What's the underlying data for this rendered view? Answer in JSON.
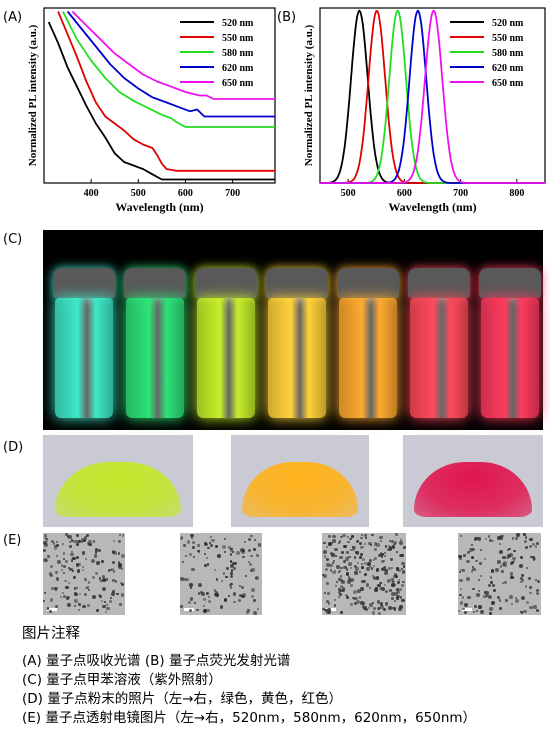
{
  "panels": {
    "a": "(A)",
    "b": "(B)",
    "c": "(C)",
    "d": "(D)",
    "e": "(E)"
  },
  "chart_data": [
    {
      "type": "line",
      "title": "",
      "xlabel": "Wavelength (nm)",
      "ylabel": "Normalized PL intensity (a.u.)",
      "xlim": [
        300,
        790
      ],
      "xticks": [
        400,
        500,
        600,
        700
      ],
      "legend_position": "top-right",
      "series": [
        {
          "name": "520 nm",
          "color": "#000000",
          "x": [
            310,
            330,
            350,
            370,
            390,
            410,
            430,
            450,
            470,
            490,
            500,
            510,
            530,
            550,
            600,
            700,
            790
          ],
          "y": [
            0.92,
            0.8,
            0.66,
            0.55,
            0.44,
            0.34,
            0.26,
            0.17,
            0.12,
            0.1,
            0.09,
            0.08,
            0.05,
            0.02,
            0.02,
            0.02,
            0.02
          ]
        },
        {
          "name": "550 nm",
          "color": "#e00000",
          "x": [
            330,
            350,
            370,
            390,
            410,
            430,
            450,
            470,
            490,
            510,
            530,
            540,
            550,
            560,
            580,
            700,
            790
          ],
          "y": [
            0.98,
            0.85,
            0.72,
            0.58,
            0.46,
            0.38,
            0.34,
            0.3,
            0.25,
            0.22,
            0.2,
            0.16,
            0.11,
            0.08,
            0.07,
            0.07,
            0.07
          ]
        },
        {
          "name": "580 nm",
          "color": "#22dd22",
          "x": [
            340,
            370,
            400,
            430,
            460,
            490,
            520,
            550,
            570,
            580,
            600,
            700,
            790
          ],
          "y": [
            0.98,
            0.82,
            0.7,
            0.6,
            0.52,
            0.47,
            0.43,
            0.39,
            0.37,
            0.35,
            0.32,
            0.32,
            0.32
          ]
        },
        {
          "name": "620 nm",
          "color": "#0000cc",
          "x": [
            350,
            380,
            410,
            440,
            470,
            500,
            530,
            560,
            590,
            610,
            625,
            640,
            700,
            790
          ],
          "y": [
            0.98,
            0.88,
            0.78,
            0.68,
            0.6,
            0.54,
            0.49,
            0.46,
            0.43,
            0.41,
            0.42,
            0.38,
            0.38,
            0.38
          ]
        },
        {
          "name": "650 nm",
          "color": "#ee11ee",
          "x": [
            360,
            390,
            420,
            450,
            480,
            510,
            540,
            570,
            600,
            630,
            645,
            660,
            700,
            790
          ],
          "y": [
            0.98,
            0.9,
            0.82,
            0.74,
            0.68,
            0.62,
            0.58,
            0.55,
            0.52,
            0.5,
            0.5,
            0.48,
            0.48,
            0.48
          ]
        }
      ]
    },
    {
      "type": "line",
      "title": "",
      "xlabel": "Wavelength (nm)",
      "ylabel": "Normalized PL intensity (a.u.)",
      "xlim": [
        450,
        850
      ],
      "xticks": [
        500,
        600,
        700,
        800
      ],
      "legend_position": "top-right",
      "series": [
        {
          "name": "520 nm",
          "color": "#000000",
          "peak": 520,
          "fwhm": 35
        },
        {
          "name": "550 nm",
          "color": "#e00000",
          "peak": 551,
          "fwhm": 35
        },
        {
          "name": "580 nm",
          "color": "#22dd22",
          "peak": 588,
          "fwhm": 35
        },
        {
          "name": "620 nm",
          "color": "#0000cc",
          "peak": 624,
          "fwhm": 35
        },
        {
          "name": "650 nm",
          "color": "#ee11ee",
          "peak": 652,
          "fwhm": 36
        }
      ]
    }
  ],
  "vials": [
    "#3fe8c8",
    "#2ee37a",
    "#c6ef2a",
    "#ffd23a",
    "#ffaa30",
    "#ff4a5a",
    "#ff3a5e"
  ],
  "powders": [
    "#c4e82a",
    "#ffb21a",
    "#e0164e"
  ],
  "caption": {
    "title": "图片注释",
    "lines": [
      "(A) 量子点吸收光谱   (B) 量子点荧光发射光谱",
      "(C) 量子点甲苯溶液（紫外照射）",
      "(D) 量子点粉末的照片（左→右，绿色，黄色，红色）",
      "(E) 量子点透射电镜图片（左→右，520nm，580nm，620nm，650nm）"
    ]
  }
}
